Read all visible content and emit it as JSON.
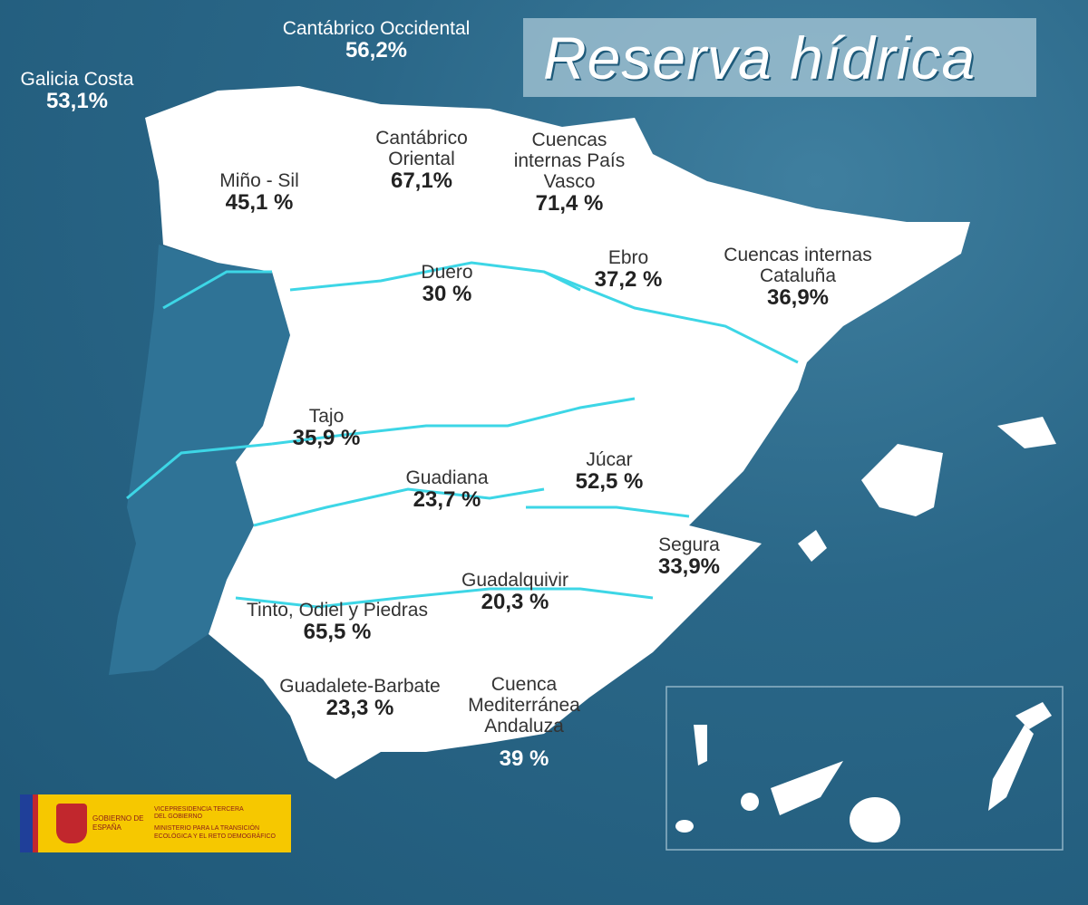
{
  "title": "Reserva hídrica",
  "colors": {
    "sea": "#2a6788",
    "land": "#ffffff",
    "rivers": "#3dd6e6",
    "title_bg": "#aac8d7"
  },
  "basins": [
    {
      "name": "Galicia Costa",
      "value": "53,1%"
    },
    {
      "name": "Cantábrico Occidental",
      "value": "56,2%"
    },
    {
      "name": "Miño - Sil",
      "value": "45,1 %"
    },
    {
      "name": "Cantábrico Oriental",
      "value": "67,1%"
    },
    {
      "name": "Cuencas internas País Vasco",
      "value": "71,4 %"
    },
    {
      "name": "Duero",
      "value": "30 %"
    },
    {
      "name": "Ebro",
      "value": "37,2 %"
    },
    {
      "name": "Cuencas internas Cataluña",
      "value": "36,9%"
    },
    {
      "name": "Tajo",
      "value": "35,9 %"
    },
    {
      "name": "Guadiana",
      "value": "23,7 %"
    },
    {
      "name": "Júcar",
      "value": "52,5 %"
    },
    {
      "name": "Segura",
      "value": "33,9%"
    },
    {
      "name": "Guadalquivir",
      "value": "20,3 %"
    },
    {
      "name": "Tinto, Odiel y Piedras",
      "value": "65,5 %"
    },
    {
      "name": "Guadalete-Barbate",
      "value": "23,3 %"
    },
    {
      "name": "Cuenca Mediterránea Andaluza",
      "value": "39 %"
    }
  ],
  "logo": {
    "gov": "GOBIERNO DE ESPAÑA",
    "vice": "VICEPRESIDENCIA TERCERA DEL GOBIERNO",
    "ministry": "MINISTERIO PARA LA TRANSICIÓN ECOLÓGICA Y EL RETO DEMOGRÁFICO"
  }
}
